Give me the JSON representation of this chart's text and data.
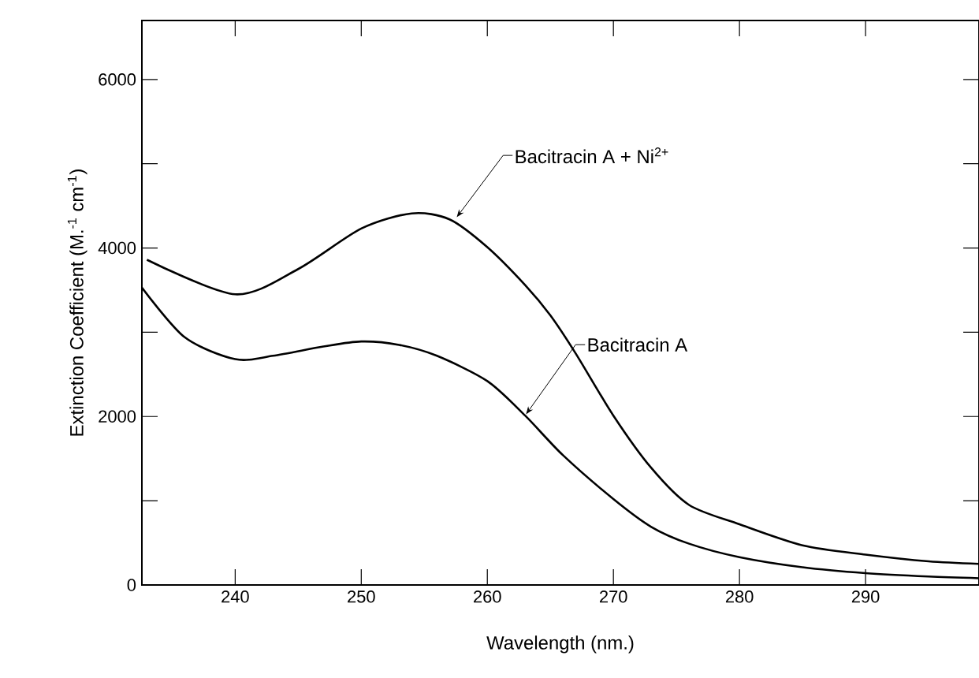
{
  "chart_data": {
    "type": "line",
    "xlabel": "Wavelength (nm.)",
    "ylabel": "Extinction Coefficient (M.$^{-1}$ cm$^{-1}$)",
    "xlim": [
      232.6,
      299
    ],
    "ylim": [
      0,
      6700
    ],
    "xticks": [
      240,
      250,
      260,
      270,
      280,
      290
    ],
    "yticks": [
      0,
      {
        "value": 1000,
        "label": null
      },
      2000,
      {
        "value": 3000,
        "label": null
      },
      4000,
      {
        "value": 5000,
        "label": null
      },
      6000
    ],
    "grid": false,
    "series": [
      {
        "color": "#000000",
        "x": [
          233,
          240,
          245,
          250,
          254,
          257,
          260,
          263,
          265,
          267,
          270,
          273,
          276,
          280,
          285,
          290,
          295,
          299
        ],
        "values": [
          3860,
          3450,
          3750,
          4230,
          4410,
          4340,
          4010,
          3560,
          3200,
          2750,
          2010,
          1390,
          950,
          720,
          470,
          360,
          280,
          250
        ]
      },
      {
        "color": "#000000",
        "x": [
          232.6,
          236,
          240,
          243,
          247,
          250,
          253,
          256,
          260,
          263,
          266,
          270,
          273,
          276,
          280,
          285,
          290,
          295,
          299
        ],
        "values": [
          3530,
          2940,
          2680,
          2720,
          2830,
          2890,
          2850,
          2720,
          2420,
          2010,
          1540,
          1020,
          690,
          490,
          330,
          210,
          140,
          100,
          80
        ]
      }
    ],
    "annotations": [
      {
        "text": "Bacitracin A + Ni$^{2+}$",
        "x": 257.5,
        "y": 4350
      },
      {
        "text": "Bacitracin A",
        "x": 263,
        "y": 2010
      }
    ]
  }
}
